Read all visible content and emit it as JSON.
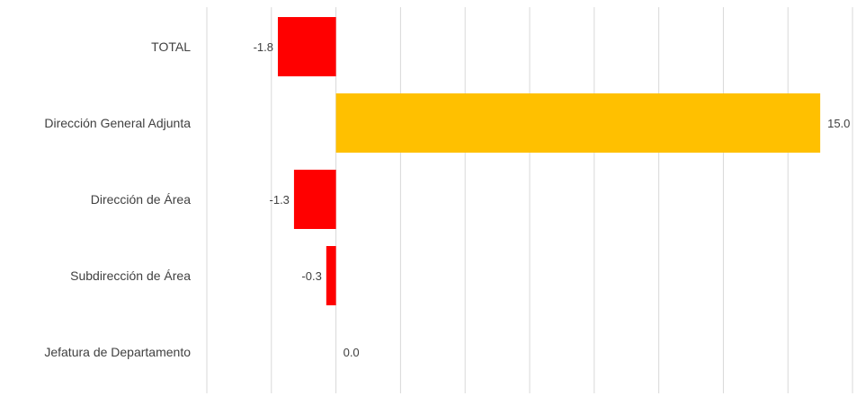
{
  "chart_data": {
    "type": "bar",
    "orientation": "horizontal",
    "categories": [
      "TOTAL",
      "Dirección General Adjunta",
      "Dirección de Área",
      "Subdirección de Área",
      "Jefatura de Departamento"
    ],
    "values": [
      -1.8,
      15.0,
      -1.3,
      -0.3,
      0.0
    ],
    "value_labels": [
      "-1.8",
      "15.0",
      "-1.3",
      "-0.3",
      "0.0"
    ],
    "title": "",
    "xlabel": "",
    "ylabel": "",
    "xlim": [
      -4,
      16
    ],
    "grid": true,
    "legend": "none",
    "colors": {
      "negative": "#ff0000",
      "positive": "#ffc000",
      "grid": "#d9d9d9",
      "text": "#404040"
    }
  }
}
